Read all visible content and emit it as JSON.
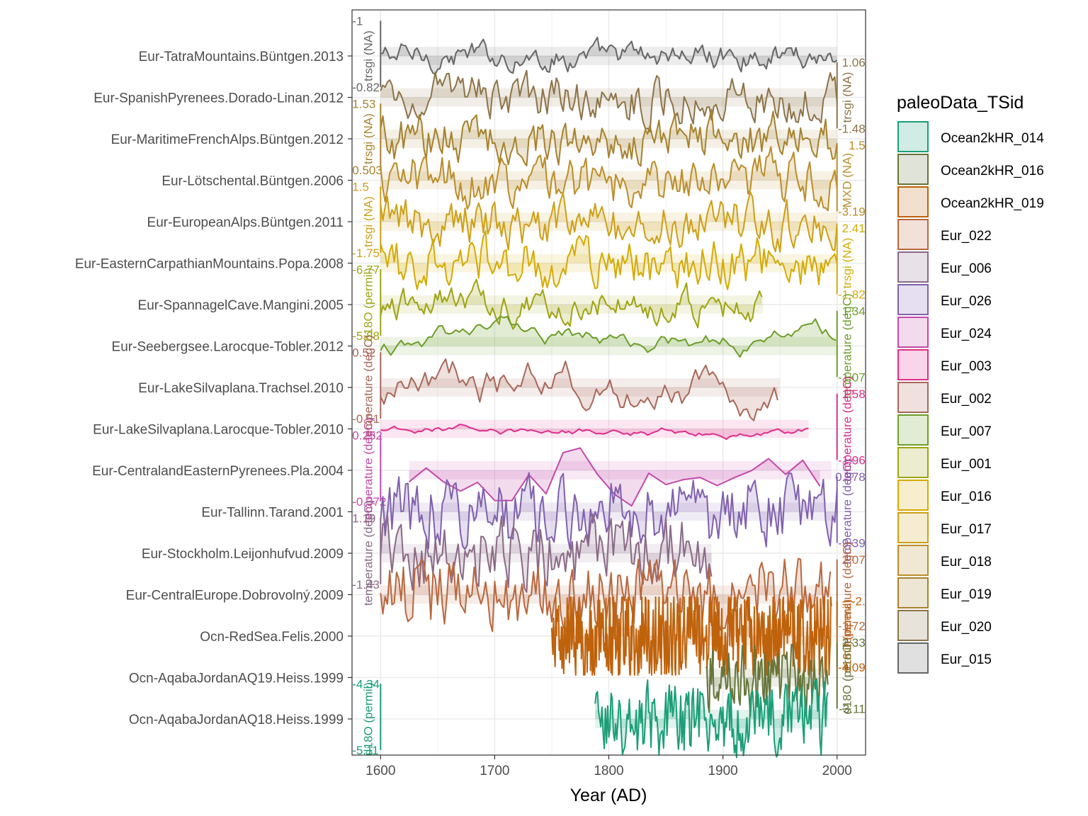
{
  "chart_data": {
    "type": "line",
    "xlabel": "Year (AD)",
    "xlim": [
      1575,
      2025
    ],
    "x_ticks": [
      1600,
      1700,
      1800,
      1900,
      2000
    ],
    "grid": true,
    "legend_position": "right",
    "legend_title": "paleoData_TSid",
    "legend": [
      {
        "label": "Ocean2kHR_014",
        "color": "#1b9e77"
      },
      {
        "label": "Ocean2kHR_016",
        "color": "#66753a"
      },
      {
        "label": "Ocean2kHR_019",
        "color": "#bf620c"
      },
      {
        "label": "Eur_022",
        "color": "#b8683f"
      },
      {
        "label": "Eur_006",
        "color": "#8a6a86"
      },
      {
        "label": "Eur_026",
        "color": "#8061ad"
      },
      {
        "label": "Eur_024",
        "color": "#c24aa9"
      },
      {
        "label": "Eur_003",
        "color": "#de2f8a"
      },
      {
        "label": "Eur_002",
        "color": "#a8685a"
      },
      {
        "label": "Eur_007",
        "color": "#6d9e2a"
      },
      {
        "label": "Eur_001",
        "color": "#9fa414"
      },
      {
        "label": "Eur_016",
        "color": "#d4ab05"
      },
      {
        "label": "Eur_017",
        "color": "#cca018"
      },
      {
        "label": "Eur_018",
        "color": "#ba8e2a"
      },
      {
        "label": "Eur_019",
        "color": "#a6822e"
      },
      {
        "label": "Eur_020",
        "color": "#8d7448"
      },
      {
        "label": "Eur_015",
        "color": "#666666"
      }
    ],
    "records": [
      {
        "name": "Eur-TatraMountains.Büntgen.2013",
        "color": "#666666",
        "start": 1600,
        "end": 2000,
        "step": 2,
        "noise": 0.55,
        "smooth": 0.7,
        "scale_top": "-1",
        "scale_bottom": "-0.82",
        "scale_side": "left",
        "axis_label": "trsgi (NA)"
      },
      {
        "name": "Eur-SpanishPyrenees.Dorado-Linan.2012",
        "color": "#8d7448",
        "start": 1600,
        "end": 2000,
        "step": 2,
        "noise": 0.7,
        "smooth": 0.55,
        "scale_top": "1.06",
        "scale_bottom": "-1.48",
        "scale_side": "right",
        "axis_label": "trsgi (NA)"
      },
      {
        "name": "Eur-MaritimeFrenchAlps.Büntgen.2012",
        "color": "#a6822e",
        "start": 1600,
        "end": 2000,
        "step": 2,
        "noise": 0.7,
        "smooth": 0.5,
        "scale_top": "1.53",
        "scale_bottom": "0.503",
        "scale_side": "left",
        "axis_label": "trsgi (NA)"
      },
      {
        "name": "Eur-Lötschental.Büntgen.2006",
        "color": "#ba8e2a",
        "start": 1600,
        "end": 2000,
        "step": 2,
        "noise": 0.75,
        "smooth": 0.5,
        "scale_top": "1.5",
        "scale_bottom": "-3.19",
        "scale_side": "right",
        "axis_label": "MXD (NA)"
      },
      {
        "name": "Eur-EuropeanAlps.Büntgen.2011",
        "color": "#cca018",
        "start": 1600,
        "end": 2000,
        "step": 2,
        "noise": 0.75,
        "smooth": 0.5,
        "scale_top": "1.5",
        "scale_bottom": "-1.75",
        "scale_side": "left",
        "axis_label": "trsgi (NA)"
      },
      {
        "name": "Eur-EasternCarpathianMountains.Popa.2008",
        "color": "#d4ab05",
        "start": 1600,
        "end": 2000,
        "step": 2,
        "noise": 0.75,
        "smooth": 0.5,
        "scale_top": "2.41",
        "scale_bottom": "-1.82",
        "scale_side": "right",
        "axis_label": "trsgi (NA)"
      },
      {
        "name": "Eur-SpannagelCave.Mangini.2005",
        "color": "#9fa414",
        "start": 1600,
        "end": 1935,
        "step": 2,
        "noise": 0.7,
        "smooth": 0.7,
        "scale_top": "-6.77",
        "scale_bottom": "-5.88",
        "scale_side": "left",
        "axis_label": "d18O (permil)"
      },
      {
        "name": "Eur-Seebergsee.Larocque-Tobler.2012",
        "color": "#6d9e2a",
        "start": 1600,
        "end": 2000,
        "step": 3,
        "noise": 0.8,
        "smooth": 0.93,
        "scale_top": "1.34",
        "scale_bottom": "-1.07",
        "scale_side": "right",
        "axis_label": "temperature (degC)"
      },
      {
        "name": "Eur-LakeSilvaplana.Trachsel.2010",
        "color": "#a8685a",
        "start": 1600,
        "end": 1950,
        "step": 3,
        "noise": 0.8,
        "smooth": 0.85,
        "scale_top": "0.52",
        "scale_bottom": "-0.51",
        "scale_side": "left",
        "axis_label": "temperature (degC)"
      },
      {
        "name": "Eur-LakeSilvaplana.Larocque-Tobler.2010",
        "color": "#de2f8a",
        "start": 1600,
        "end": 1975,
        "step": 3,
        "noise": 0.75,
        "smooth": 0.97,
        "scale_top": "1.58",
        "scale_bottom": "-1.96",
        "scale_side": "right",
        "axis_label": "temperature (degC)"
      },
      {
        "name": "Eur-CentralandEasternPyrenees.Pla.2004",
        "color": "#c24aa9",
        "start": 1625,
        "end": 1995,
        "step": 15,
        "noise": 0.7,
        "smooth": 0.2,
        "scale_top": "0.252",
        "scale_bottom": "-0.372",
        "scale_side": "left",
        "axis_label": "temperature (degC)"
      },
      {
        "name": "Eur-Tallinn.Tarand.2001",
        "color": "#8061ad",
        "start": 1600,
        "end": 2000,
        "step": 2,
        "noise": 0.8,
        "smooth": 0.3,
        "scale_top": "0.378",
        "scale_bottom": "-9.39",
        "scale_side": "right",
        "axis_label": "temperature (degC)"
      },
      {
        "name": "Eur-Stockholm.Leijonhufvud.2009",
        "color": "#8a6a86",
        "start": 1600,
        "end": 1890,
        "step": 2,
        "noise": 0.8,
        "smooth": 0.3,
        "scale_top": "1.19",
        "scale_bottom": "-1.43",
        "scale_side": "left",
        "axis_label": "temperature (degC)"
      },
      {
        "name": "Eur-CentralEurope.Dobrovolný.2009",
        "color": "#b8683f",
        "start": 1600,
        "end": 1995,
        "step": 2,
        "noise": 0.8,
        "smooth": 0.3,
        "scale_top": "2.07",
        "scale_bottom": "-1.72",
        "scale_side": "right",
        "axis_label": "temperature (degC)"
      },
      {
        "name": "Ocn-RedSea.Felis.2000",
        "color": "#bf620c",
        "start": 1750,
        "end": 1995,
        "step": 0.5,
        "noise": 0.85,
        "smooth": 0.1,
        "scale_top": "-2.",
        "scale_bottom": "-4.09",
        "scale_side": "right",
        "axis_label": "d18O (permil)"
      },
      {
        "name": "Ocn-AqabaJordanAQ19.Heiss.1999",
        "color": "#66753a",
        "start": 1885,
        "end": 1992,
        "step": 1,
        "noise": 0.85,
        "smooth": 0.3,
        "scale_top": "2.33",
        "scale_bottom": "-3.11",
        "scale_side": "right",
        "axis_label": "d18O (permil)"
      },
      {
        "name": "Ocn-AqabaJordanAQ18.Heiss.1999",
        "color": "#1b9e77",
        "start": 1788,
        "end": 1992,
        "step": 1,
        "noise": 0.85,
        "smooth": 0.3,
        "scale_top": "-4.34",
        "scale_bottom": "-5.11",
        "scale_side": "left",
        "axis_label": "d18O (permil)"
      }
    ]
  }
}
